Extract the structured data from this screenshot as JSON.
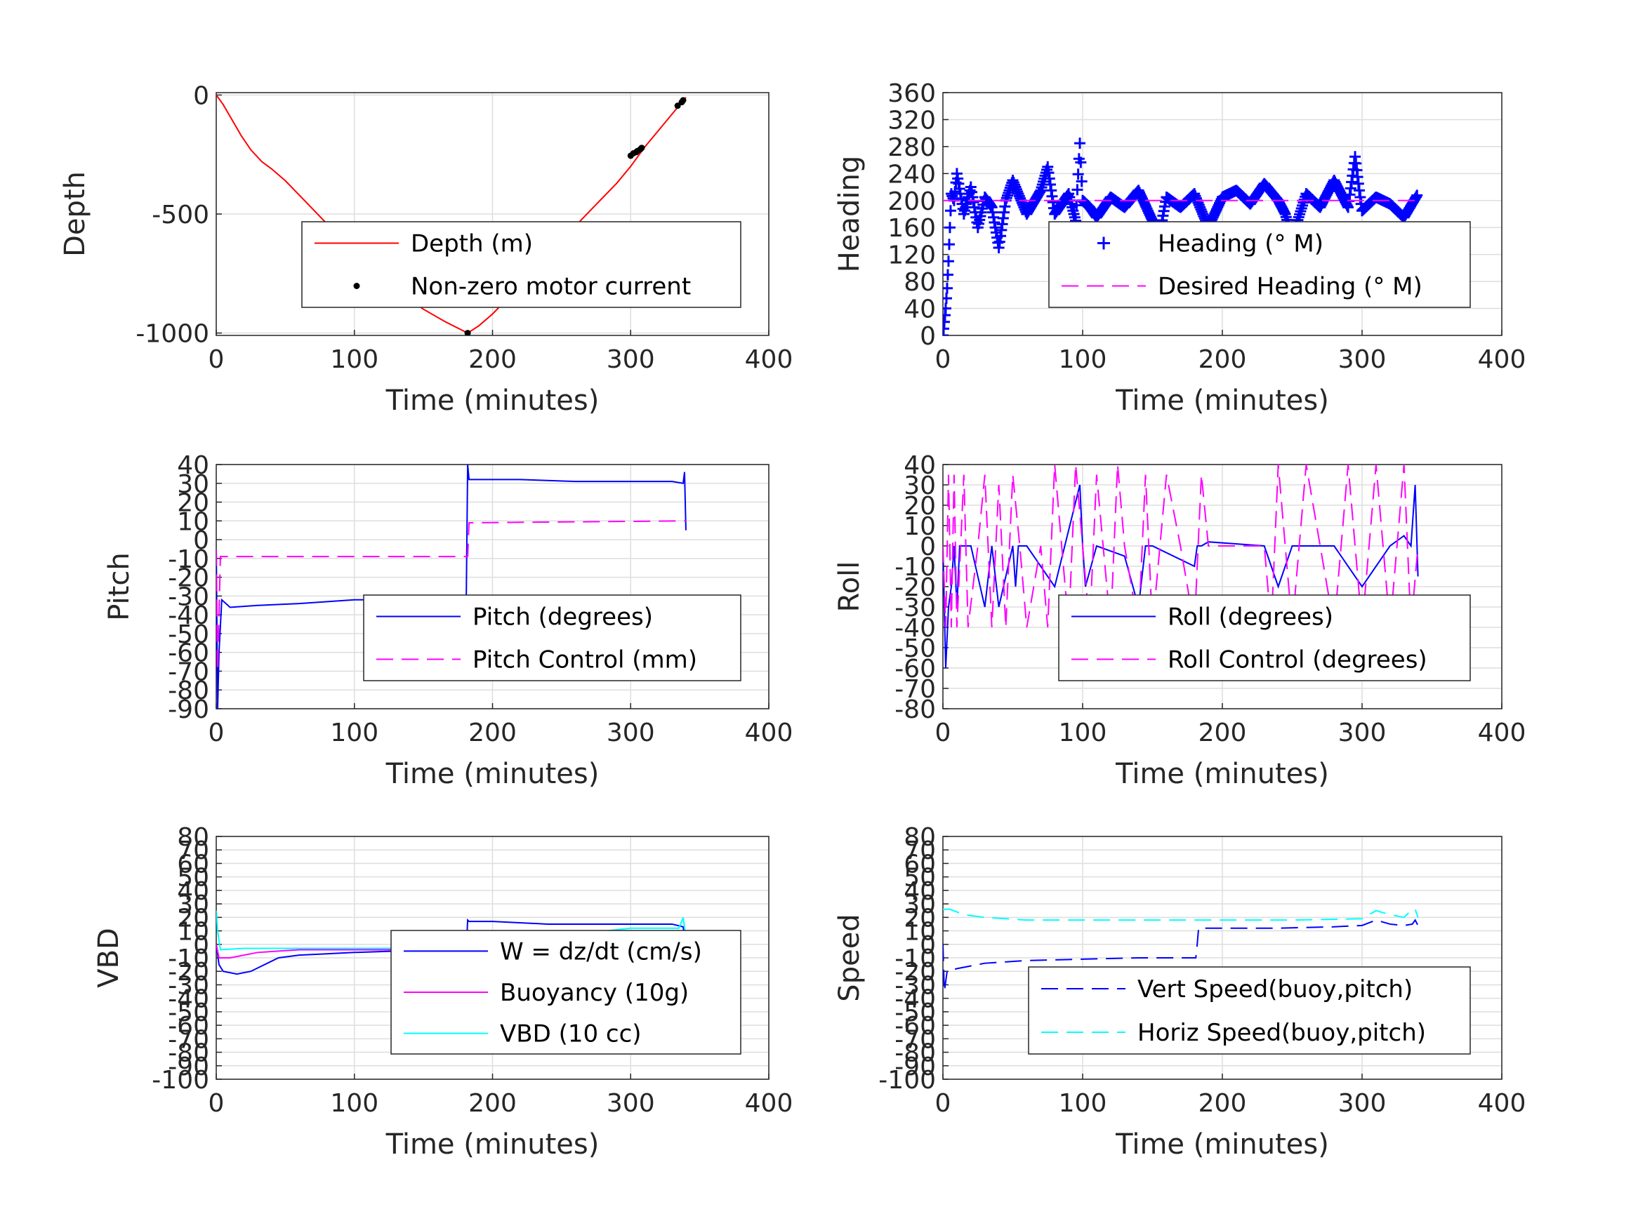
{
  "figure_width": 2333,
  "figure_height": 1750,
  "chart_data": [
    {
      "id": "depth",
      "type": "line",
      "xlabel": "Time (minutes)",
      "ylabel": "Depth",
      "xlim": [
        0,
        400
      ],
      "ylim": [
        -1010,
        10
      ],
      "xticks": [
        0,
        100,
        200,
        300,
        400
      ],
      "yticks": [
        0,
        -500,
        -1000
      ],
      "ytick_labels": [
        "0",
        "-500",
        "-1000"
      ],
      "grid": true,
      "legend": {
        "placement": "center",
        "entries": [
          "Depth (m)",
          "Non-zero motor current"
        ]
      },
      "series": [
        {
          "name": "Depth (m)",
          "style": "line",
          "color": "#ff0000",
          "x": [
            0,
            5,
            10,
            18,
            25,
            33,
            40,
            50,
            60,
            75,
            90,
            105,
            120,
            135,
            150,
            165,
            182,
            190,
            200,
            215,
            230,
            245,
            260,
            275,
            290,
            300,
            310,
            320,
            330,
            340
          ],
          "y": [
            0,
            -40,
            -90,
            -170,
            -230,
            -280,
            -310,
            -360,
            -420,
            -510,
            -600,
            -690,
            -770,
            -840,
            -900,
            -950,
            -1000,
            -970,
            -920,
            -830,
            -730,
            -640,
            -550,
            -460,
            -370,
            -300,
            -220,
            -150,
            -80,
            -10
          ]
        },
        {
          "name": "Non-zero motor current",
          "style": "points",
          "color": "#000000",
          "x": [
            182,
            300,
            302,
            304,
            305,
            307,
            308,
            334,
            337,
            338
          ],
          "y": [
            -1000,
            -255,
            -245,
            -240,
            -235,
            -228,
            -222,
            -45,
            -30,
            -22
          ]
        }
      ]
    },
    {
      "id": "heading",
      "type": "scatter",
      "xlabel": "Time (minutes)",
      "ylabel": "Heading",
      "xlim": [
        0,
        400
      ],
      "ylim": [
        0,
        360
      ],
      "xticks": [
        0,
        100,
        200,
        300,
        400
      ],
      "yticks": [
        0,
        40,
        80,
        120,
        160,
        200,
        240,
        280,
        320,
        360
      ],
      "ytick_labels": [
        "0",
        "40",
        "80",
        "120",
        "160",
        "200",
        "240",
        "280",
        "320",
        "360"
      ],
      "grid": true,
      "legend": {
        "placement": "center-right",
        "entries": [
          "Heading (° M)",
          "Desired Heading (° M)"
        ]
      },
      "series": [
        {
          "name": "Heading (° M)",
          "style": "plus",
          "color": "#0000ff",
          "x": [
            0,
            1,
            2,
            3,
            4,
            5,
            6,
            8,
            10,
            15,
            20,
            25,
            30,
            35,
            40,
            45,
            50,
            60,
            70,
            75,
            80,
            90,
            95,
            98,
            100,
            105,
            110,
            120,
            130,
            140,
            150,
            155,
            160,
            170,
            180,
            190,
            200,
            210,
            220,
            230,
            240,
            245,
            250,
            260,
            270,
            280,
            290,
            295,
            298,
            300,
            310,
            320,
            330,
            340
          ],
          "y": [
            0,
            20,
            40,
            70,
            110,
            160,
            210,
            200,
            240,
            180,
            220,
            160,
            205,
            190,
            130,
            200,
            230,
            180,
            215,
            250,
            180,
            210,
            170,
            285,
            200,
            190,
            175,
            205,
            190,
            215,
            170,
            150,
            205,
            190,
            210,
            160,
            205,
            215,
            195,
            225,
            200,
            180,
            145,
            210,
            190,
            230,
            190,
            265,
            215,
            185,
            205,
            195,
            175,
            210
          ]
        },
        {
          "name": "Desired Heading (° M)",
          "style": "dash",
          "color": "#ff00ff",
          "x": [
            0,
            340
          ],
          "y": [
            200,
            200
          ]
        }
      ]
    },
    {
      "id": "pitch",
      "type": "line",
      "xlabel": "Time (minutes)",
      "ylabel": "Pitch",
      "xlim": [
        0,
        400
      ],
      "ylim": [
        -90,
        40
      ],
      "xticks": [
        0,
        100,
        200,
        300,
        400
      ],
      "yticks": [
        40,
        30,
        20,
        10,
        0,
        -10,
        -20,
        -30,
        -40,
        -50,
        -60,
        -70,
        -80,
        -90
      ],
      "ytick_labels": [
        "40",
        "30",
        "20",
        "10",
        "0",
        "-10",
        "-20",
        "-30",
        "-40",
        "-50",
        "-60",
        "-70",
        "-80",
        "-90"
      ],
      "grid": true,
      "legend": {
        "placement": "center-right",
        "entries": [
          "Pitch (degrees)",
          "Pitch Control (mm)"
        ]
      },
      "series": [
        {
          "name": "Pitch (degrees)",
          "style": "line",
          "color": "#0000ff",
          "x": [
            0,
            1,
            2,
            4,
            10,
            30,
            60,
            100,
            140,
            181,
            182,
            183,
            190,
            220,
            260,
            300,
            330,
            338,
            339,
            340
          ],
          "y": [
            -5,
            -90,
            -60,
            -32,
            -36,
            -35,
            -34,
            -32,
            -32,
            -31,
            40,
            32,
            32,
            32,
            31,
            31,
            31,
            30,
            36,
            5
          ]
        },
        {
          "name": "Pitch Control (mm)",
          "style": "dash",
          "color": "#ff00ff",
          "x": [
            0,
            1,
            3,
            181,
            182,
            183,
            340
          ],
          "y": [
            -5,
            -70,
            -9,
            -9,
            -9,
            9,
            10
          ]
        }
      ]
    },
    {
      "id": "roll",
      "type": "line",
      "xlabel": "Time (minutes)",
      "ylabel": "Roll",
      "xlim": [
        0,
        400
      ],
      "ylim": [
        -80,
        40
      ],
      "xticks": [
        0,
        100,
        200,
        300,
        400
      ],
      "yticks": [
        40,
        30,
        20,
        10,
        0,
        -10,
        -20,
        -30,
        -40,
        -50,
        -60,
        -70,
        -80
      ],
      "ytick_labels": [
        "40",
        "30",
        "20",
        "10",
        "0",
        "-10",
        "-20",
        "-30",
        "-40",
        "-50",
        "-60",
        "-70",
        "-80"
      ],
      "grid": true,
      "legend": {
        "placement": "center-right",
        "entries": [
          "Roll (degrees)",
          "Roll Control (degrees)"
        ]
      },
      "series": [
        {
          "name": "Roll (degrees)",
          "style": "line",
          "color": "#0000ff",
          "x": [
            0,
            2,
            4,
            6,
            8,
            10,
            12,
            20,
            30,
            35,
            40,
            50,
            52,
            54,
            60,
            80,
            98,
            100,
            102,
            110,
            130,
            140,
            145,
            150,
            180,
            182,
            185,
            190,
            230,
            240,
            250,
            280,
            300,
            320,
            330,
            335,
            338,
            340
          ],
          "y": [
            0,
            -60,
            -30,
            -20,
            0,
            -30,
            0,
            0,
            -30,
            0,
            -30,
            0,
            -20,
            0,
            0,
            -20,
            30,
            0,
            -20,
            0,
            -5,
            -30,
            0,
            0,
            -10,
            0,
            0,
            2,
            0,
            -20,
            0,
            0,
            -20,
            0,
            5,
            0,
            30,
            -15
          ]
        },
        {
          "name": "Roll Control (degrees)",
          "style": "dash",
          "color": "#ff00ff",
          "x": [
            0,
            2,
            4,
            6,
            8,
            10,
            15,
            18,
            25,
            30,
            35,
            40,
            45,
            50,
            55,
            60,
            70,
            75,
            80,
            90,
            95,
            100,
            105,
            110,
            120,
            125,
            130,
            140,
            145,
            150,
            160,
            170,
            180,
            185,
            190,
            230,
            235,
            240,
            250,
            260,
            280,
            290,
            300,
            310,
            320,
            330,
            335,
            340
          ],
          "y": [
            0,
            -40,
            35,
            -40,
            35,
            -40,
            35,
            -40,
            0,
            35,
            -40,
            30,
            -40,
            35,
            0,
            -40,
            0,
            -40,
            40,
            -40,
            40,
            0,
            -40,
            35,
            -40,
            40,
            0,
            -40,
            35,
            -40,
            35,
            0,
            -40,
            35,
            0,
            0,
            -40,
            40,
            -40,
            40,
            -40,
            40,
            -40,
            40,
            -40,
            40,
            -40,
            0
          ]
        }
      ]
    },
    {
      "id": "vbd",
      "type": "line",
      "xlabel": "Time (minutes)",
      "ylabel": "VBD",
      "xlim": [
        0,
        400
      ],
      "ylim": [
        -100,
        80
      ],
      "xticks": [
        0,
        100,
        200,
        300,
        400
      ],
      "yticks": [
        80,
        70,
        60,
        50,
        40,
        30,
        20,
        10,
        0,
        -10,
        -20,
        -30,
        -40,
        -50,
        -60,
        -70,
        -80,
        -90,
        -100
      ],
      "ytick_labels": [
        "80",
        "70",
        "60",
        "50",
        "40",
        "30",
        "20",
        "10",
        "0",
        "-10",
        "-20",
        "-30",
        "-40",
        "-50",
        "-60",
        "-70",
        "-80",
        "-90",
        "-100"
      ],
      "grid": true,
      "legend": {
        "placement": "center-right",
        "entries": [
          "W = dz/dt (cm/s)",
          "Buoyancy (10g)",
          "VBD (10 cc)"
        ]
      },
      "series": [
        {
          "name": "W = dz/dt (cm/s)",
          "style": "line",
          "color": "#0000ff",
          "x": [
            0,
            2,
            5,
            15,
            25,
            35,
            45,
            60,
            80,
            100,
            130,
            160,
            181,
            182,
            183,
            200,
            240,
            280,
            310,
            330,
            338,
            340
          ],
          "y": [
            0,
            -15,
            -20,
            -22,
            -20,
            -15,
            -10,
            -8,
            -7,
            -6,
            -5,
            -4,
            -4,
            18,
            17,
            17,
            15,
            15,
            15,
            15,
            13,
            0
          ]
        },
        {
          "name": "Buoyancy (10g)",
          "style": "line",
          "color": "#ff00ff",
          "x": [
            0,
            2,
            10,
            30,
            60,
            120,
            181,
            182,
            240,
            300,
            335,
            340
          ],
          "y": [
            0,
            -10,
            -10,
            -6,
            -4,
            -4,
            -4,
            7,
            7,
            8,
            7,
            7
          ]
        },
        {
          "name": "VBD (10 cc)",
          "style": "line",
          "color": "#00ffff",
          "x": [
            0,
            1,
            3,
            20,
            60,
            120,
            181,
            182,
            240,
            300,
            335,
            338,
            340
          ],
          "y": [
            25,
            10,
            -4,
            -3,
            -3,
            -3,
            -3,
            5,
            5,
            12,
            12,
            20,
            5
          ]
        }
      ]
    },
    {
      "id": "speed",
      "type": "line",
      "xlabel": "Time (minutes)",
      "ylabel": "Speed",
      "xlim": [
        0,
        400
      ],
      "ylim": [
        -100,
        80
      ],
      "xticks": [
        0,
        100,
        200,
        300,
        400
      ],
      "yticks": [
        80,
        70,
        60,
        50,
        40,
        30,
        20,
        10,
        0,
        -10,
        -20,
        -30,
        -40,
        -50,
        -60,
        -70,
        -80,
        -90,
        -100
      ],
      "ytick_labels": [
        "80",
        "70",
        "60",
        "50",
        "40",
        "30",
        "20",
        "10",
        "0",
        "-10",
        "-20",
        "-30",
        "-40",
        "-50",
        "-60",
        "-70",
        "-80",
        "-90",
        "-100"
      ],
      "grid": true,
      "legend": {
        "placement": "lower-right",
        "entries": [
          "Vert Speed(buoy,pitch)",
          "Horiz Speed(buoy,pitch)"
        ]
      },
      "series": [
        {
          "name": "Vert Speed(buoy,pitch)",
          "style": "dash",
          "color": "#0000ff",
          "x": [
            0,
            1,
            3,
            10,
            30,
            60,
            100,
            140,
            175,
            181,
            182,
            183,
            190,
            240,
            280,
            300,
            310,
            320,
            330,
            336,
            338,
            340
          ],
          "y": [
            0,
            -35,
            -20,
            -18,
            -14,
            -12,
            -11,
            -10,
            -10,
            -10,
            0,
            12,
            12,
            12,
            13,
            14,
            18,
            15,
            14,
            15,
            18,
            14
          ]
        },
        {
          "name": "Horiz Speed(buoy,pitch)",
          "style": "dash",
          "color": "#00ffff",
          "x": [
            0,
            5,
            15,
            30,
            60,
            100,
            150,
            200,
            250,
            300,
            310,
            320,
            330,
            336,
            338,
            340
          ],
          "y": [
            26,
            26,
            22,
            20,
            18,
            18,
            18,
            18,
            18,
            19,
            25,
            22,
            20,
            26,
            26,
            20
          ]
        }
      ]
    }
  ]
}
